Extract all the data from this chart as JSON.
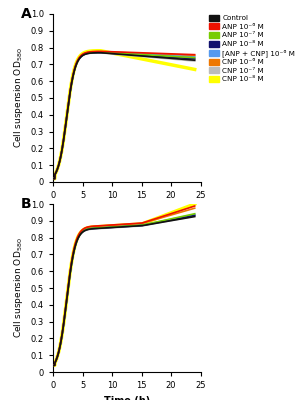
{
  "title_A": "A",
  "title_B": "B",
  "xlabel": "Time (h)",
  "ylabel": "Cell suspension OD$_{580}$",
  "xlim": [
    0,
    25
  ],
  "ylim_A": [
    0,
    1.0
  ],
  "ylim_B": [
    0,
    1.0
  ],
  "xticks": [
    0,
    5,
    10,
    15,
    20,
    25
  ],
  "yticks": [
    0,
    0.1,
    0.2,
    0.3,
    0.4,
    0.5,
    0.6,
    0.7,
    0.8,
    0.9,
    1.0
  ],
  "legend_labels": [
    "Control",
    "ANP 10⁻⁶ M",
    "ANP 10⁻⁷ M",
    "ANP 10⁻⁸ M",
    "[ANP + CNP] 10⁻⁶ M",
    "CNP 10⁻⁶ M",
    "CNP 10⁻⁷ M",
    "CNP 10⁻⁸ M"
  ],
  "colors": [
    "#111111",
    "#ee1100",
    "#77cc00",
    "#11116e",
    "#5599ee",
    "#ee7700",
    "#bbbbbb",
    "#ffff00"
  ],
  "line_widths": [
    1.2,
    1.2,
    1.2,
    1.2,
    1.2,
    1.2,
    1.2,
    2.5
  ],
  "A_plateau": [
    0.77,
    0.778,
    0.773,
    0.771,
    0.774,
    0.776,
    0.769,
    0.782
  ],
  "A_end": [
    0.725,
    0.758,
    0.74,
    0.733,
    0.744,
    0.752,
    0.72,
    0.67
  ],
  "B_plateau": [
    0.855,
    0.87,
    0.858,
    0.856,
    0.858,
    0.868,
    0.853,
    0.865
  ],
  "B_end": [
    0.925,
    0.988,
    0.942,
    0.932,
    0.938,
    0.975,
    0.928,
    1.0
  ],
  "growth_k_A": 1.4,
  "growth_t0_A": 2.3,
  "growth_k_B": 1.35,
  "growth_t0_B": 2.3
}
